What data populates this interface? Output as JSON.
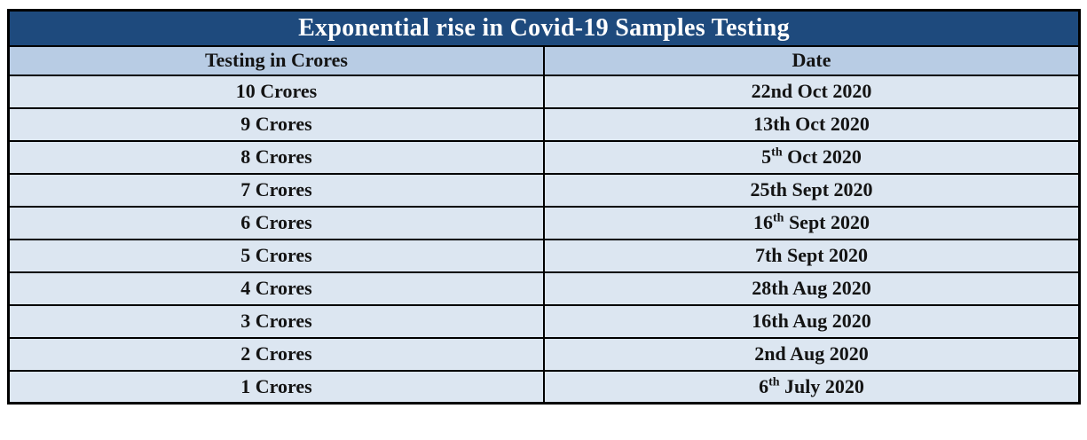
{
  "colors": {
    "title_bg": "#1E4A7D",
    "title_text": "#FFFFFF",
    "header_bg": "#B8CCE4",
    "row_bg": "#DCE6F1",
    "border": "#000000",
    "cell_text": "#141414",
    "page_bg": "#FFFFFF"
  },
  "table": {
    "title": "Exponential rise in Covid-19 Samples Testing",
    "columns": [
      "Testing in Crores",
      "Date"
    ],
    "rows": [
      {
        "testing": "10 Crores",
        "date_day": "22nd",
        "date_sup": "",
        "date_rest": " Oct 2020"
      },
      {
        "testing": "9 Crores",
        "date_day": "13th",
        "date_sup": "",
        "date_rest": " Oct 2020"
      },
      {
        "testing": "8 Crores",
        "date_day": "5",
        "date_sup": "th",
        "date_rest": " Oct 2020"
      },
      {
        "testing": "7 Crores",
        "date_day": "25th",
        "date_sup": "",
        "date_rest": " Sept 2020"
      },
      {
        "testing": "6 Crores",
        "date_day": "16",
        "date_sup": "th",
        "date_rest": " Sept 2020"
      },
      {
        "testing": "5 Crores",
        "date_day": "7th",
        "date_sup": "",
        "date_rest": " Sept 2020"
      },
      {
        "testing": "4 Crores",
        "date_day": "28th",
        "date_sup": "",
        "date_rest": " Aug 2020"
      },
      {
        "testing": "3 Crores",
        "date_day": "16th",
        "date_sup": "",
        "date_rest": " Aug 2020"
      },
      {
        "testing": "2 Crores",
        "date_day": "2nd",
        "date_sup": "",
        "date_rest": " Aug 2020"
      },
      {
        "testing": "1 Crores",
        "date_day": "6",
        "date_sup": "th",
        "date_rest": " July 2020"
      }
    ]
  },
  "chart_data": {
    "type": "table",
    "title": "Exponential rise in Covid-19 Samples Testing",
    "columns": [
      "Testing in Crores",
      "Date"
    ],
    "rows": [
      [
        "10 Crores",
        "22nd Oct 2020"
      ],
      [
        "9 Crores",
        "13th Oct 2020"
      ],
      [
        "8 Crores",
        "5th Oct 2020"
      ],
      [
        "7 Crores",
        "25th Sept 2020"
      ],
      [
        "6 Crores",
        "16th Sept 2020"
      ],
      [
        "5 Crores",
        "7th Sept 2020"
      ],
      [
        "4 Crores",
        "28th Aug 2020"
      ],
      [
        "3 Crores",
        "16th Aug 2020"
      ],
      [
        "2 Crores",
        "2nd Aug 2020"
      ],
      [
        "1 Crores",
        "6th July 2020"
      ]
    ]
  }
}
